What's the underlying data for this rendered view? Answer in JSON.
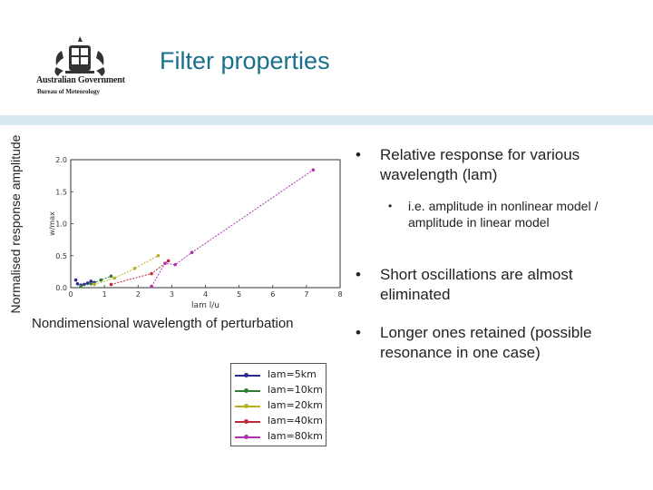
{
  "slide": {
    "title": "Filter properties",
    "logo": {
      "icon": "coat-of-arms-icon",
      "line1": "Australian Government",
      "line2": "Bureau of Meteorology"
    },
    "outer_ylabel": "Normalised response amplitude",
    "outer_xlabel": "Nondimensional wavelength of perturbation",
    "bullets": [
      {
        "level": 1,
        "text": "Relative response for various wavelength (lam)"
      },
      {
        "level": 2,
        "text": "i.e. amplitude in nonlinear model / amplitude in linear model"
      },
      {
        "level": 1,
        "text": "Short oscillations are almost eliminated"
      },
      {
        "level": 1,
        "text": "Longer ones retained (possible resonance in one case)"
      }
    ]
  },
  "chart_data": {
    "type": "line",
    "xlabel": "lam l/u",
    "ylabel": "w/max",
    "xlim": [
      0,
      8
    ],
    "ylim": [
      0,
      2.0
    ],
    "xticks": [
      "0",
      "1",
      "2",
      "3",
      "4",
      "5",
      "6",
      "7",
      "8"
    ],
    "yticks": [
      "0.0",
      "0.5",
      "1.0",
      "1.5",
      "2.0"
    ],
    "legend_position": "bottom",
    "series": [
      {
        "name": "lam=5km",
        "color": "#2b2b8f",
        "x": [
          0.15,
          0.2,
          0.3,
          0.4,
          0.5,
          0.6,
          0.7
        ],
        "y": [
          0.12,
          0.06,
          0.04,
          0.05,
          0.07,
          0.1,
          0.08
        ]
      },
      {
        "name": "lam=10km",
        "color": "#2e7d32",
        "x": [
          0.3,
          0.6,
          0.9,
          1.2
        ],
        "y": [
          0.02,
          0.06,
          0.12,
          0.18
        ]
      },
      {
        "name": "lam=20km",
        "color": "#b5b01e",
        "x": [
          0.7,
          1.3,
          1.9,
          2.6
        ],
        "y": [
          0.05,
          0.15,
          0.3,
          0.5
        ]
      },
      {
        "name": "lam=40km",
        "color": "#c0283c",
        "x": [
          1.2,
          2.4,
          2.9
        ],
        "y": [
          0.05,
          0.22,
          0.42
        ]
      },
      {
        "name": "lam=80km",
        "color": "#b030b0",
        "x": [
          2.4,
          2.8,
          3.1,
          3.6,
          7.2
        ],
        "y": [
          0.02,
          0.38,
          0.36,
          0.55,
          1.84
        ]
      }
    ]
  }
}
